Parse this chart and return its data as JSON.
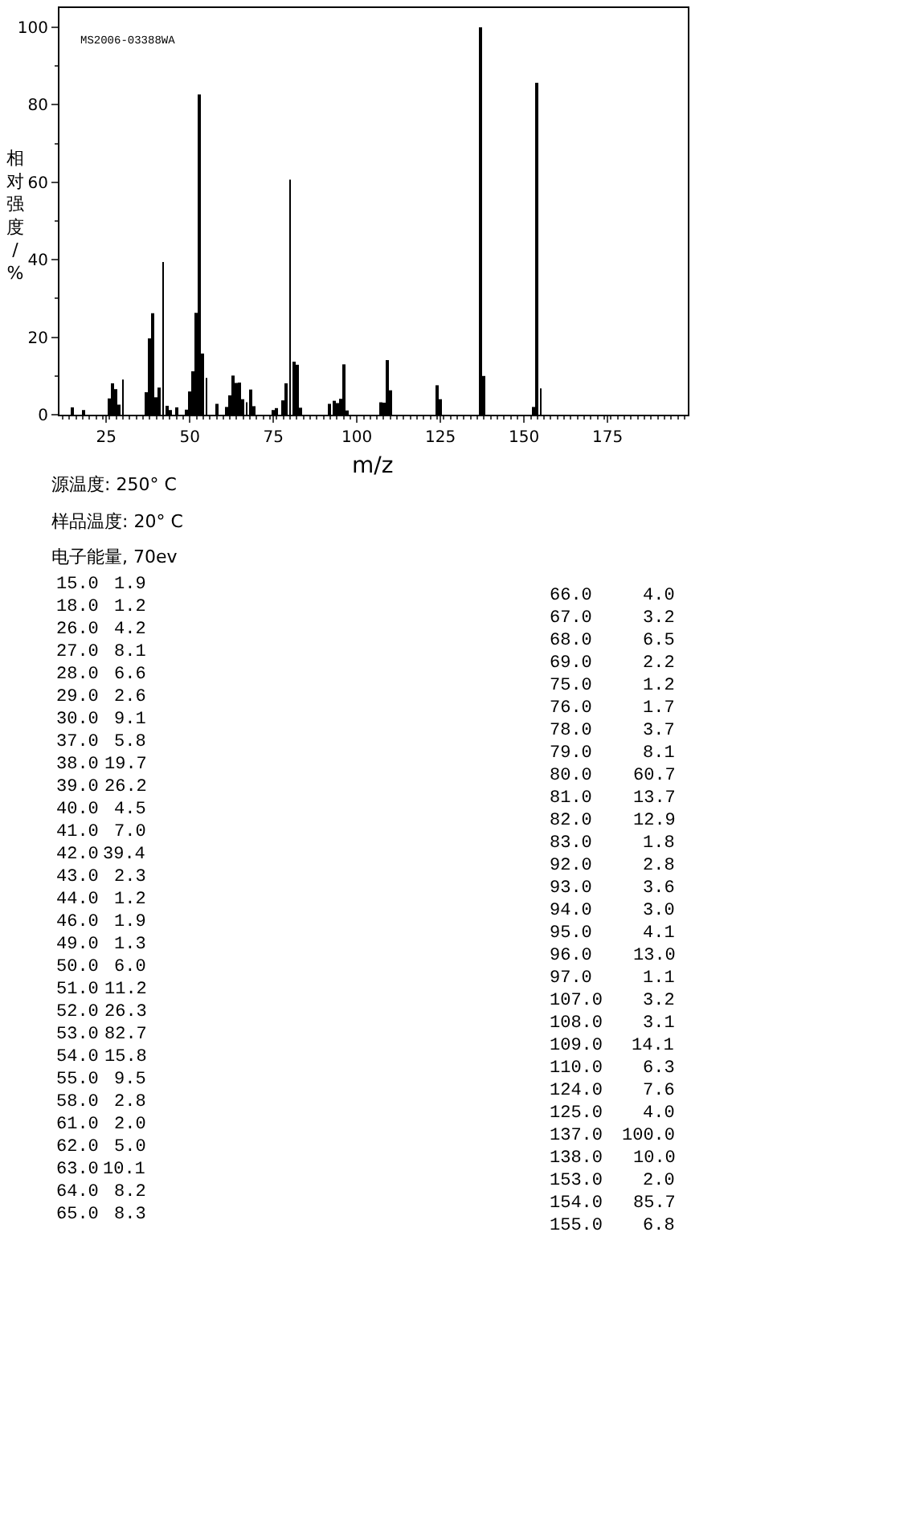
{
  "chart_data": [
    {
      "type": "bar",
      "xlabel": "m/z",
      "ylabel": "相对强度/%",
      "x": [
        15,
        18,
        26,
        27,
        28,
        29,
        30,
        37,
        38,
        39,
        40,
        41,
        42,
        43,
        44,
        46,
        49,
        50,
        51,
        52,
        53,
        54,
        55,
        58,
        61,
        62,
        63,
        64,
        65,
        66,
        67,
        68,
        69,
        75,
        76,
        78,
        79,
        80,
        81,
        82,
        83,
        92,
        93,
        94,
        95,
        96,
        97,
        107,
        108,
        109,
        110,
        124,
        125,
        137,
        138,
        153,
        154,
        155
      ],
      "values": [
        1.9,
        1.2,
        4.2,
        8.1,
        6.6,
        2.6,
        9.1,
        5.8,
        19.7,
        26.2,
        4.5,
        7.0,
        39.4,
        2.3,
        1.2,
        1.9,
        1.3,
        6.0,
        11.2,
        26.3,
        82.7,
        15.8,
        9.5,
        2.8,
        2.0,
        5.0,
        10.1,
        8.2,
        8.3,
        4.0,
        3.2,
        6.5,
        2.2,
        1.2,
        1.7,
        3.7,
        8.1,
        60.7,
        13.7,
        12.9,
        1.8,
        2.8,
        3.6,
        3.0,
        4.1,
        13.0,
        1.1,
        3.2,
        3.1,
        14.1,
        6.3,
        7.6,
        4.0,
        100.0,
        10.0,
        2.0,
        85.7,
        6.8
      ],
      "color": "#000000",
      "xlim": [
        11,
        199
      ],
      "xticks": [
        25,
        50,
        75,
        100,
        125,
        150,
        175
      ],
      "ylim": [
        0,
        105
      ],
      "yticks": [
        0,
        20,
        40,
        60,
        80,
        100
      ],
      "grid": false,
      "annotations": [
        "MS2006-03388WA",
        "源温度: 250° C",
        "样品温度: 20° C",
        "电子能量, 70ev"
      ]
    },
    {
      "type": "other",
      "annotations": [
        "15.0",
        "1.9",
        "18.0",
        "1.2",
        "26.0",
        "4.2",
        "27.0",
        "8.1",
        "28.0",
        "6.6",
        "29.0",
        "2.6",
        "30.0",
        "9.1",
        "37.0",
        "5.8",
        "38.0",
        "19.7",
        "39.0",
        "26.2",
        "40.0",
        "4.5",
        "41.0",
        "7.0",
        "42.0",
        "39.4",
        "43.0",
        "2.3",
        "44.0",
        "1.2",
        "46.0",
        "1.9",
        "49.0",
        "1.3",
        "50.0",
        "6.0",
        "51.0",
        "11.2",
        "52.0",
        "26.3",
        "53.0",
        "82.7",
        "54.0",
        "15.8",
        "55.0",
        "9.5",
        "58.0",
        "2.8",
        "61.0",
        "2.0",
        "62.0",
        "5.0",
        "63.0",
        "10.1",
        "64.0",
        "8.2",
        "65.0",
        "8.3",
        "66.0",
        "4.0",
        "67.0",
        "3.2",
        "68.0",
        "6.5",
        "69.0",
        "2.2",
        "75.0",
        "1.2",
        "76.0",
        "1.7",
        "78.0",
        "3.7",
        "79.0",
        "8.1",
        "80.0",
        "60.7",
        "81.0",
        "13.7",
        "82.0",
        "12.9",
        "83.0",
        "1.8",
        "92.0",
        "2.8",
        "93.0",
        "3.6",
        "94.0",
        "3.0",
        "95.0",
        "4.1",
        "96.0",
        "13.0",
        "97.0",
        "1.1",
        "107.0",
        "3.2",
        "108.0",
        "3.1",
        "109.0",
        "14.1",
        "110.0",
        "6.3",
        "124.0",
        "7.6",
        "125.0",
        "4.0",
        "137.0",
        "100.0",
        "138.0",
        "10.0",
        "153.0",
        "2.0",
        "154.0",
        "85.7",
        "155.0",
        "6.8"
      ]
    }
  ]
}
